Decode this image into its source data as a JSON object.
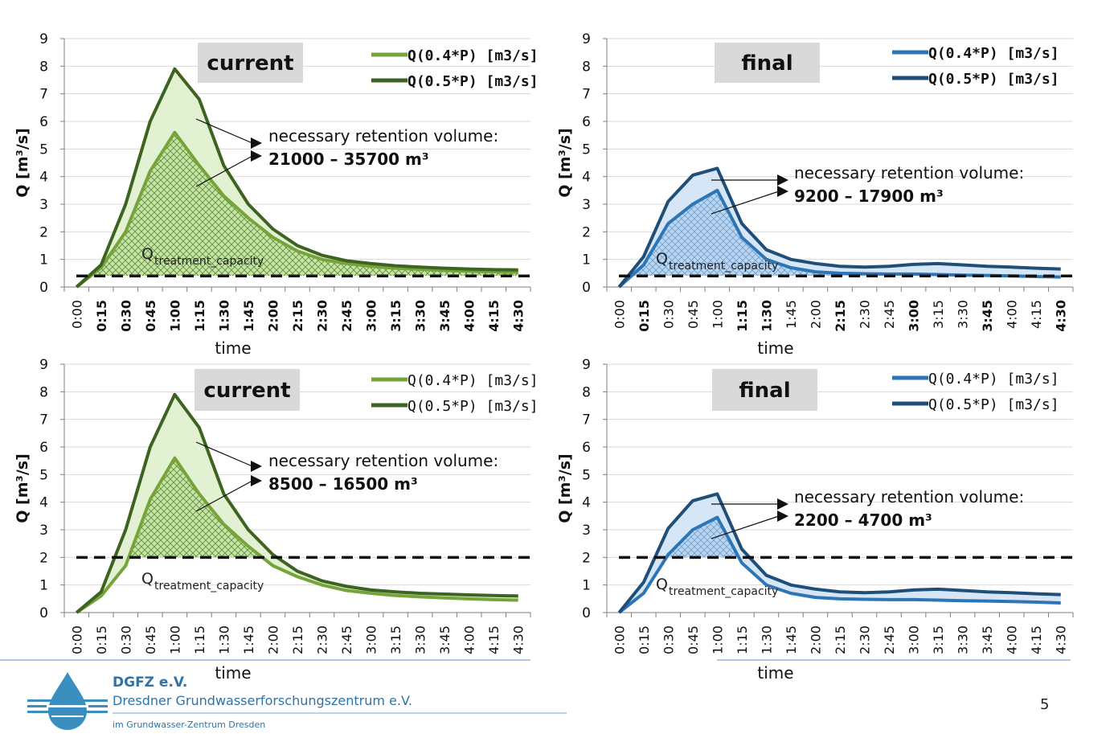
{
  "chart_data": [
    {
      "type": "area",
      "label_box": "current",
      "xlabel": "time",
      "ylabel": "Q [m³/s]",
      "ylim": [
        0,
        9
      ],
      "yticks": [
        0,
        1,
        2,
        3,
        4,
        5,
        6,
        7,
        8,
        9
      ],
      "categories": [
        "0:00",
        "0:15",
        "0:30",
        "0:45",
        "1:00",
        "1:15",
        "1:30",
        "1:45",
        "2:00",
        "2:15",
        "2:30",
        "2:45",
        "3:00",
        "3:15",
        "3:30",
        "3:45",
        "4:00",
        "4:15",
        "4:30"
      ],
      "bold_ticks": [
        "0:15",
        "0:30",
        "0:45",
        "1:00",
        "1:15",
        "1:30",
        "1:45",
        "2:00",
        "2:15",
        "2:30",
        "2:45",
        "3:00",
        "3:15",
        "3:30",
        "3:45",
        "4:00",
        "4:15",
        "4:30"
      ],
      "series": [
        {
          "name": "Q(0.4*P) [m3/s]",
          "color": "#76A33A",
          "values": [
            0,
            0.7,
            2.0,
            4.2,
            5.6,
            4.4,
            3.3,
            2.5,
            1.8,
            1.3,
            1.0,
            0.85,
            0.75,
            0.68,
            0.64,
            0.6,
            0.57,
            0.55,
            0.53
          ]
        },
        {
          "name": "Q(0.5*P) [m3/s]",
          "color": "#3D6320",
          "values": [
            0,
            0.8,
            3.0,
            6.0,
            7.9,
            6.8,
            4.4,
            3.0,
            2.1,
            1.5,
            1.15,
            0.95,
            0.85,
            0.77,
            0.72,
            0.68,
            0.65,
            0.63,
            0.62
          ]
        }
      ],
      "threshold": 0.4,
      "threshold_label": "Q",
      "threshold_label_sub": "treatment_capacity",
      "annotation": {
        "line1": "necessary retention volume:",
        "line2": "21000 – 35700 m³"
      },
      "legend_position": "top-right"
    },
    {
      "type": "area",
      "label_box": "final",
      "xlabel": "time",
      "ylabel": "Q [m³/s]",
      "ylim": [
        0,
        9
      ],
      "yticks": [
        0,
        1,
        2,
        3,
        4,
        5,
        6,
        7,
        8,
        9
      ],
      "categories": [
        "0:00",
        "0:15",
        "0:30",
        "0:45",
        "1:00",
        "1:15",
        "1:30",
        "1:45",
        "2:00",
        "2:15",
        "2:30",
        "2:45",
        "3:00",
        "3:15",
        "3:30",
        "3:45",
        "4:00",
        "4:15",
        "4:30"
      ],
      "bold_ticks": [
        "0:15",
        "1:15",
        "1:30",
        "2:15",
        "3:00",
        "3:45",
        "4:30"
      ],
      "series": [
        {
          "name": "Q(0.4*P) [m3/s]",
          "color": "#2E75B6",
          "values": [
            0,
            0.8,
            2.3,
            3.0,
            3.5,
            1.8,
            1.0,
            0.7,
            0.55,
            0.5,
            0.48,
            0.47,
            0.47,
            0.45,
            0.43,
            0.42,
            0.4,
            0.38,
            0.36
          ]
        },
        {
          "name": "Q(0.5*P) [m3/s]",
          "color": "#1F4E79",
          "values": [
            0,
            1.1,
            3.1,
            4.05,
            4.3,
            2.3,
            1.35,
            1.0,
            0.85,
            0.75,
            0.72,
            0.75,
            0.82,
            0.85,
            0.8,
            0.75,
            0.72,
            0.68,
            0.65
          ]
        }
      ],
      "threshold": 0.4,
      "threshold_label": "Q",
      "threshold_label_sub": "treatment_capacity",
      "annotation": {
        "line1": "necessary retention volume:",
        "line2": "9200 – 17900 m³"
      },
      "legend_position": "top-right"
    },
    {
      "type": "area",
      "label_box": "current",
      "xlabel": "time",
      "ylabel": "Q [m³/s]",
      "ylim": [
        0,
        9
      ],
      "yticks": [
        0,
        1,
        2,
        3,
        4,
        5,
        6,
        7,
        8,
        9
      ],
      "categories": [
        "0:00",
        "0:15",
        "0:30",
        "0:45",
        "1:00",
        "1:15",
        "1:30",
        "1:45",
        "2:00",
        "2:15",
        "2:30",
        "2:45",
        "3:00",
        "3:15",
        "3:30",
        "3:45",
        "4:00",
        "4:15",
        "4:30"
      ],
      "bold_ticks": [],
      "series": [
        {
          "name": "Q(0.4*P) [m3/s]",
          "color": "#76A33A",
          "values": [
            0,
            0.6,
            1.7,
            4.1,
            5.6,
            4.3,
            3.2,
            2.4,
            1.7,
            1.3,
            1.0,
            0.8,
            0.7,
            0.62,
            0.57,
            0.53,
            0.5,
            0.47,
            0.45
          ]
        },
        {
          "name": "Q(0.5*P) [m3/s]",
          "color": "#3D6320",
          "values": [
            0,
            0.75,
            3.0,
            6.0,
            7.9,
            6.7,
            4.3,
            3.0,
            2.1,
            1.5,
            1.15,
            0.95,
            0.82,
            0.75,
            0.7,
            0.67,
            0.64,
            0.62,
            0.6
          ]
        }
      ],
      "threshold": 2.0,
      "threshold_label": "Q",
      "threshold_label_sub": "treatment_capacity",
      "annotation": {
        "line1": "necessary retention volume:",
        "line2": "8500 – 16500 m³"
      },
      "legend_position": "top-right"
    },
    {
      "type": "area",
      "label_box": "final",
      "xlabel": "time",
      "ylabel": "Q [m³/s]",
      "ylim": [
        0,
        9
      ],
      "yticks": [
        0,
        1,
        2,
        3,
        4,
        5,
        6,
        7,
        8,
        9
      ],
      "categories": [
        "0:00",
        "0:15",
        "0:30",
        "0:45",
        "1:00",
        "1:15",
        "1:30",
        "1:45",
        "2:00",
        "2:15",
        "2:30",
        "2:45",
        "3:00",
        "3:15",
        "3:30",
        "3:45",
        "4:00",
        "4:15",
        "4:30"
      ],
      "bold_ticks": [],
      "series": [
        {
          "name": "Q(0.4*P) [m3/s]",
          "color": "#2E75B6",
          "values": [
            0,
            0.7,
            2.1,
            3.0,
            3.45,
            1.8,
            1.0,
            0.7,
            0.55,
            0.5,
            0.48,
            0.47,
            0.47,
            0.45,
            0.43,
            0.42,
            0.4,
            0.38,
            0.35
          ]
        },
        {
          "name": "Q(0.5*P) [m3/s]",
          "color": "#1F4E79",
          "values": [
            0,
            1.1,
            3.05,
            4.05,
            4.3,
            2.3,
            1.35,
            1.0,
            0.85,
            0.75,
            0.72,
            0.75,
            0.82,
            0.85,
            0.8,
            0.75,
            0.72,
            0.68,
            0.65
          ]
        }
      ],
      "threshold": 2.0,
      "threshold_label": "Q",
      "threshold_label_sub": "treatment_capacity",
      "annotation": {
        "line1": "necessary retention volume:",
        "line2": "2200 – 4700 m³"
      },
      "legend_position": "top-right"
    }
  ],
  "footer": {
    "org_name": "DGFZ e.V.",
    "org_full": "Dresdner Grundwasserforschungszentrum e.V.",
    "org_sub": "im Grundwasser-Zentrum Dresden",
    "page_number": "5",
    "accent_color": "#2E74A8"
  }
}
